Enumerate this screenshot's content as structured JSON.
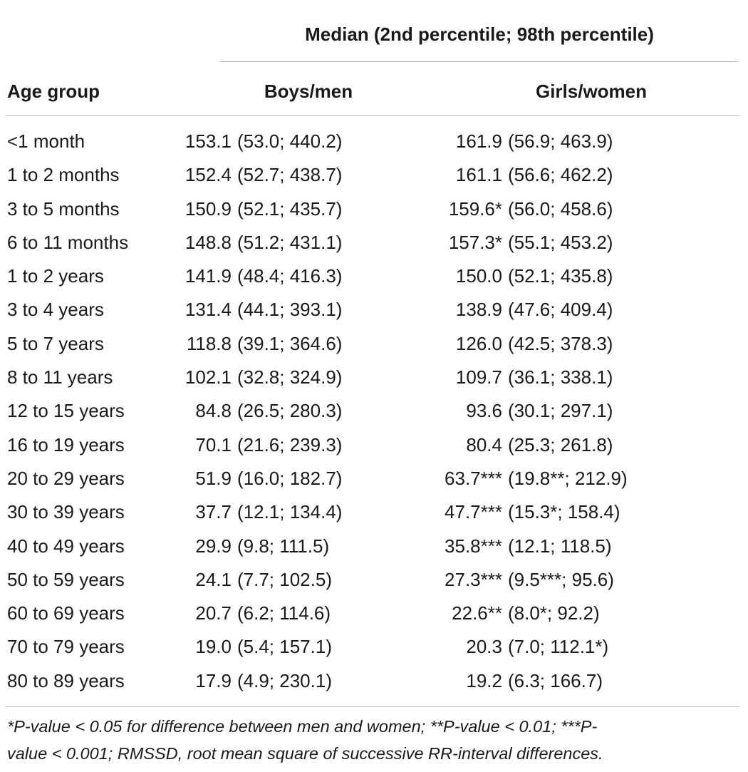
{
  "header": {
    "group_label": "Median (2nd percentile; 98th percentile)",
    "age_label": "Age group",
    "men_label": "Boys/men",
    "women_label": "Girls/women"
  },
  "rows": [
    {
      "age": "<1 month",
      "men_median": "153.1",
      "men_range": "(53.0; 440.2)",
      "women_median": "161.9",
      "women_range": "(56.9; 463.9)"
    },
    {
      "age": "1 to 2 months",
      "men_median": "152.4",
      "men_range": "(52.7; 438.7)",
      "women_median": "161.1",
      "women_range": "(56.6; 462.2)"
    },
    {
      "age": "3 to 5 months",
      "men_median": "150.9",
      "men_range": "(52.1; 435.7)",
      "women_median": "159.6*",
      "women_range": "(56.0; 458.6)"
    },
    {
      "age": "6 to 11 months",
      "men_median": "148.8",
      "men_range": "(51.2; 431.1)",
      "women_median": "157.3*",
      "women_range": "(55.1; 453.2)"
    },
    {
      "age": "1 to 2 years",
      "men_median": "141.9",
      "men_range": "(48.4; 416.3)",
      "women_median": "150.0",
      "women_range": "(52.1; 435.8)"
    },
    {
      "age": "3 to 4 years",
      "men_median": "131.4",
      "men_range": "(44.1; 393.1)",
      "women_median": "138.9",
      "women_range": "(47.6; 409.4)"
    },
    {
      "age": "5 to 7 years",
      "men_median": "118.8",
      "men_range": "(39.1; 364.6)",
      "women_median": "126.0",
      "women_range": "(42.5; 378.3)"
    },
    {
      "age": "8 to 11 years",
      "men_median": "102.1",
      "men_range": "(32.8; 324.9)",
      "women_median": "109.7",
      "women_range": "(36.1; 338.1)"
    },
    {
      "age": "12 to 15 years",
      "men_median": "84.8",
      "men_range": "(26.5; 280.3)",
      "women_median": "93.6",
      "women_range": "(30.1; 297.1)"
    },
    {
      "age": "16 to 19 years",
      "men_median": "70.1",
      "men_range": "(21.6; 239.3)",
      "women_median": "80.4",
      "women_range": "(25.3; 261.8)"
    },
    {
      "age": "20 to 29 years",
      "men_median": "51.9",
      "men_range": "(16.0; 182.7)",
      "women_median": "63.7***",
      "women_range": "(19.8**; 212.9)"
    },
    {
      "age": "30 to 39 years",
      "men_median": "37.7",
      "men_range": "(12.1; 134.4)",
      "women_median": "47.7***",
      "women_range": "(15.3*; 158.4)"
    },
    {
      "age": "40 to 49 years",
      "men_median": "29.9",
      "men_range": "(9.8; 111.5)",
      "women_median": "35.8***",
      "women_range": "(12.1; 118.5)"
    },
    {
      "age": "50 to 59 years",
      "men_median": "24.1",
      "men_range": "(7.7; 102.5)",
      "women_median": "27.3***",
      "women_range": "(9.5***; 95.6)"
    },
    {
      "age": "60 to 69 years",
      "men_median": "20.7",
      "men_range": "(6.2; 114.6)",
      "women_median": "22.6**",
      "women_range": "(8.0*; 92.2)"
    },
    {
      "age": "70 to 79 years",
      "men_median": "19.0",
      "men_range": "(5.4; 157.1)",
      "women_median": "20.3",
      "women_range": "(7.0; 112.1*)"
    },
    {
      "age": "80 to 89 years",
      "men_median": "17.9",
      "men_range": "(4.9; 230.1)",
      "women_median": "19.2",
      "women_range": "(6.3; 166.7)"
    }
  ],
  "footnote": {
    "line1": "*P-value < 0.05 for difference between men and women; **P-value < 0.01; ***P-",
    "line2": "value < 0.001; RMSSD, root mean square of successive RR-interval differences."
  }
}
